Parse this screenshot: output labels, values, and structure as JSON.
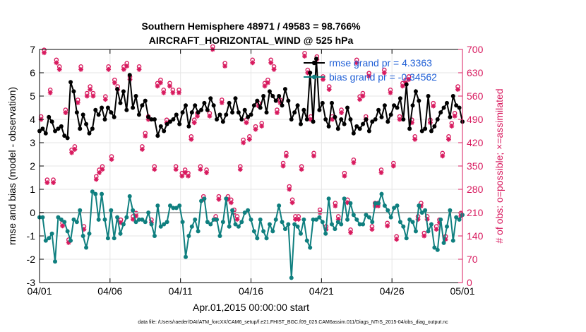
{
  "chart_data": {
    "type": "line",
    "title": "Southern Hemisphere 48971 / 49583 = 98.766%",
    "subtitle": "AIRCRAFT_HORIZONTAL_WIND @ 525 hPa",
    "xlabel": "Apr.01,2015 00:00:00 start",
    "ylabel_left": "rmse and bias (model - observation)",
    "ylabel_right": "# of obs: o=possible; ×=assimilated",
    "footnote": "data file: /Users/raeder/DAI/ATM_forcXX/CAM6_setup/f.e21.FHIST_BGC.f09_025.CAM6assim.011/Diags_NTrS_2015-04/obs_diag_output.nc",
    "xlim": [
      0,
      30
    ],
    "ylim_left": [
      -3,
      7
    ],
    "ylim_right": [
      0,
      700
    ],
    "x_ticks": [
      0,
      5,
      10,
      15,
      20,
      25,
      30
    ],
    "x_tick_labels": [
      "04/01",
      "04/06",
      "04/11",
      "04/16",
      "04/21",
      "04/26",
      "05/01"
    ],
    "y_left_ticks": [
      "-3",
      "-2",
      "-1",
      "0",
      "1",
      "2",
      "3",
      "4",
      "5",
      "6",
      "7"
    ],
    "y_right_ticks": [
      "0",
      "70",
      "140",
      "210",
      "280",
      "350",
      "420",
      "490",
      "560",
      "630",
      "700"
    ],
    "grid": true,
    "legend_position": "top-right",
    "colors": {
      "rmse": "#000000",
      "bias": "#0f7f7f",
      "obs": "#d81b5f",
      "legend_text": "#1f5fd6",
      "zero_line": "#b0b0b0"
    },
    "series": [
      {
        "name": "rmse grand pr = 4.3363",
        "axis": "left",
        "values": [
          3.5,
          3.6,
          3.4,
          4.1,
          3.9,
          3.5,
          3.6,
          3.7,
          3.3,
          3.2,
          5.6,
          5.2,
          4.3,
          3.6,
          4.2,
          3.8,
          3.4,
          3.6,
          4.4,
          4.2,
          4.5,
          4.0,
          4.5,
          4.3,
          4.1,
          5.3,
          4.7,
          5.2,
          4.4,
          5.9,
          4.5,
          5.0,
          4.2,
          4.6,
          4.8,
          4.1,
          4.0,
          4.0,
          3.3,
          3.7,
          3.5,
          3.8,
          3.9,
          4.0,
          4.2,
          3.8,
          4.3,
          4.6,
          3.7,
          4.3,
          4.6,
          4.3,
          4.4,
          4.7,
          4.4,
          4.9,
          4.6,
          4.0,
          4.2,
          3.9,
          4.2,
          4.7,
          4.3,
          4.9,
          4.3,
          4.0,
          4.4,
          4.1,
          4.2,
          4.6,
          4.8,
          4.5,
          5.0,
          4.3,
          5.2,
          5.0,
          4.8,
          5.0,
          4.6,
          5.3,
          4.8,
          4.0,
          4.3,
          4.6,
          3.8,
          4.4,
          4.0,
          6.0,
          3.9,
          6.6,
          4.4,
          4.7,
          4.0,
          3.7,
          4.7,
          4.1,
          3.6,
          4.0,
          3.8,
          4.5,
          4.0,
          3.4,
          3.7,
          3.6,
          3.8,
          4.0,
          3.5,
          3.9,
          4.0,
          4.4,
          4.1,
          4.6,
          3.9,
          4.2,
          4.6,
          4.5,
          4.9,
          4.0,
          5.5,
          3.6,
          4.6,
          5.2,
          4.8,
          3.5,
          3.6,
          5.0,
          3.5,
          3.7,
          4.0,
          4.3,
          4.5,
          4.7,
          4.1,
          5.0,
          4.6,
          4.5,
          3.9
        ],
        "marker": "filled-circle"
      },
      {
        "name": "bias grand pr = -0.34562",
        "axis": "left",
        "values": [
          -0.2,
          -0.2,
          -1.2,
          -1.1,
          -0.9,
          -2.1,
          -0.2,
          -0.3,
          -0.4,
          -0.8,
          -1.2,
          -0.3,
          -0.4,
          0.1,
          -1.0,
          -1.5,
          -0.9,
          0.9,
          0.8,
          -0.3,
          0.8,
          -0.3,
          -1.1,
          0.1,
          -1.1,
          -0.2,
          -0.9,
          -0.5,
          -0.2,
          0.7,
          0.1,
          -0.4,
          -0.3,
          -0.3,
          -0.4,
          0.0,
          -0.5,
          -1.0,
          0.3,
          -0.6,
          -0.5,
          -0.4,
          0.3,
          0.2,
          0.2,
          0.3,
          -0.4,
          -1.9,
          -1.0,
          -0.6,
          -0.3,
          -0.8,
          0.5,
          0.6,
          -0.4,
          -0.5,
          -0.3,
          -0.3,
          -1.0,
          -0.4,
          0.6,
          -0.6,
          0.1,
          -0.5,
          -0.6,
          -0.4,
          0.0,
          0.1,
          -0.3,
          -0.8,
          -1.1,
          -0.3,
          -0.8,
          -1.1,
          -0.5,
          -0.8,
          -0.3,
          0.3,
          -0.4,
          -0.7,
          -0.5,
          -2.8,
          -0.5,
          -0.6,
          -0.9,
          -0.3,
          -1.2,
          -1.5,
          -0.3,
          -0.3,
          -0.2,
          -0.4,
          -0.9,
          0.6,
          -0.5,
          -0.7,
          -0.4,
          -0.5,
          0.6,
          -0.3,
          0.4,
          -0.1,
          -0.3,
          -0.5,
          -0.5,
          -0.1,
          -0.2,
          -0.4,
          0.4,
          0.4,
          0.8,
          0.3,
          0.1,
          -0.2,
          0.2,
          0.3,
          -0.4,
          -0.6,
          -1.1,
          -0.3,
          -0.4,
          -0.8,
          0.3,
          0.0,
          0.1,
          -0.8,
          -0.5,
          -1.5,
          -1.6,
          -0.3,
          -1.3,
          -0.6,
          0.1,
          -1.2,
          -0.2,
          -0.3,
          -0.1
        ],
        "marker": "filled-circle"
      }
    ],
    "obs_counts": {
      "axis": "right",
      "markers": "o = possible, × = assimilated",
      "values": [
        490,
        690,
        300,
        570,
        300,
        660,
        640,
        170,
        510,
        120,
        390,
        400,
        540,
        640,
        160,
        560,
        580,
        560,
        310,
        330,
        340,
        550,
        640,
        370,
        600,
        580,
        180,
        640,
        650,
        610,
        190,
        200,
        640,
        400,
        440,
        490,
        180,
        340,
        590,
        600,
        570,
        480,
        590,
        570,
        340,
        570,
        320,
        330,
        320,
        430,
        480,
        500,
        340,
        250,
        330,
        500,
        700,
        190,
        250,
        540,
        650,
        250,
        240,
        210,
        190,
        340,
        420,
        480,
        430,
        660,
        460,
        530,
        470,
        590,
        600,
        660,
        640,
        510,
        540,
        350,
        380,
        280,
        240,
        190,
        190,
        340,
        680,
        630,
        490,
        380,
        670,
        210,
        610,
        160,
        580,
        490,
        230,
        190,
        510,
        320,
        240,
        150,
        360,
        660,
        550,
        560,
        490,
        620,
        160,
        230,
        230,
        330,
        630,
        170,
        570,
        350,
        130,
        490,
        590,
        600,
        610,
        480,
        430,
        190,
        230,
        140,
        190,
        480,
        530,
        160,
        180,
        380,
        130,
        430,
        470,
        500,
        580,
        200
      ]
    }
  }
}
